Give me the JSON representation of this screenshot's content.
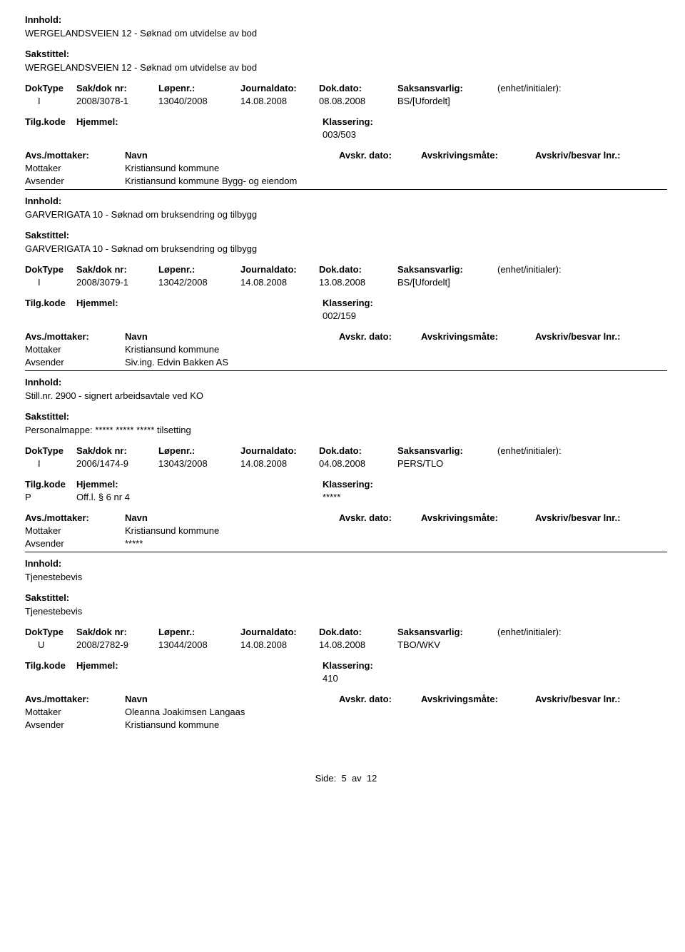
{
  "labels": {
    "innhold": "Innhold:",
    "sakstittel": "Sakstittel:",
    "doktype": "DokType",
    "sakdok": "Sak/dok nr:",
    "lopenr": "Løpenr.:",
    "journaldato": "Journaldato:",
    "dokdato": "Dok.dato:",
    "saksansvarlig": "Saksansvarlig:",
    "enhet": "(enhet/initialer):",
    "tilgkode": "Tilg.kode",
    "hjemmel": "Hjemmel:",
    "klassering": "Klassering:",
    "avsmottaker": "Avs./mottaker:",
    "navn": "Navn",
    "avskrdato": "Avskr. dato:",
    "avskrivmate": "Avskrivingsmåte:",
    "avskrivbesvar": "Avskriv/besvar lnr.:",
    "mottaker": "Mottaker",
    "avsender": "Avsender"
  },
  "records": [
    {
      "innhold": "WERGELANDSVEIEN 12 - Søknad om utvidelse av bod",
      "sakstittel": "WERGELANDSVEIEN 12 - Søknad om utvidelse av bod",
      "doktype": "I",
      "sakdok": "2008/3078-1",
      "lopenr": "13040/2008",
      "journaldato": "14.08.2008",
      "dokdato": "08.08.2008",
      "saksansvarlig": "BS/[Ufordelt]",
      "enhet": "",
      "tilgkode": "",
      "hjemmel": "",
      "klassering": "003/503",
      "parties": [
        {
          "role": "Mottaker",
          "name": "Kristiansund kommune"
        },
        {
          "role": "Avsender",
          "name": "Kristiansund kommune Bygg- og eiendom"
        }
      ]
    },
    {
      "innhold": "GARVERIGATA 10 - Søknad om bruksendring og tilbygg",
      "sakstittel": "GARVERIGATA 10 - Søknad om bruksendring og tilbygg",
      "doktype": "I",
      "sakdok": "2008/3079-1",
      "lopenr": "13042/2008",
      "journaldato": "14.08.2008",
      "dokdato": "13.08.2008",
      "saksansvarlig": "BS/[Ufordelt]",
      "enhet": "",
      "tilgkode": "",
      "hjemmel": "",
      "klassering": "002/159",
      "parties": [
        {
          "role": "Mottaker",
          "name": "Kristiansund kommune"
        },
        {
          "role": "Avsender",
          "name": "Siv.ing. Edvin Bakken AS"
        }
      ]
    },
    {
      "innhold": "Still.nr. 2900 - signert arbeidsavtale ved KO",
      "sakstittel": "Personalmappe: ***** ***** ***** tilsetting",
      "doktype": "I",
      "sakdok": "2006/1474-9",
      "lopenr": "13043/2008",
      "journaldato": "14.08.2008",
      "dokdato": "04.08.2008",
      "saksansvarlig": "PERS/TLO",
      "enhet": "",
      "tilgkode": "P",
      "hjemmel": "Off.l. § 6 nr 4",
      "klassering": "*****",
      "parties": [
        {
          "role": "Mottaker",
          "name": "Kristiansund kommune"
        },
        {
          "role": "Avsender",
          "name": "*****"
        }
      ]
    },
    {
      "innhold": "Tjenestebevis",
      "sakstittel": "Tjenestebevis",
      "doktype": "U",
      "sakdok": "2008/2782-9",
      "lopenr": "13044/2008",
      "journaldato": "14.08.2008",
      "dokdato": "14.08.2008",
      "saksansvarlig": "TBO/WKV",
      "enhet": "",
      "tilgkode": "",
      "hjemmel": "",
      "klassering": "410",
      "parties": [
        {
          "role": "Mottaker",
          "name": "Oleanna Joakimsen Langaas"
        },
        {
          "role": "Avsender",
          "name": "Kristiansund kommune"
        }
      ]
    }
  ],
  "footer": {
    "prefix": "Side:",
    "page": "5",
    "sep": "av",
    "total": "12"
  }
}
